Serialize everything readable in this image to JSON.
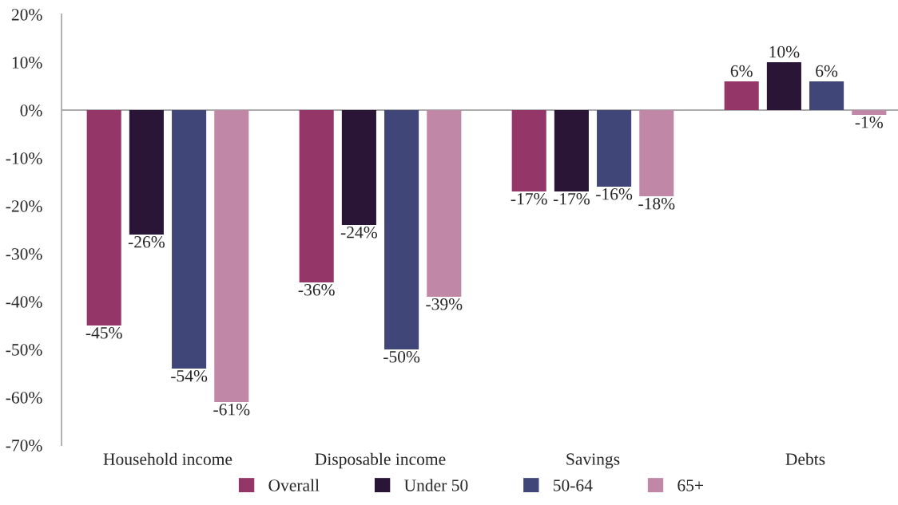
{
  "chart_data": {
    "type": "bar",
    "categories": [
      "Household income",
      "Disposable income",
      "Savings",
      "Debts"
    ],
    "ylim": [
      -70,
      20
    ],
    "yticks": [
      {
        "value": -70,
        "label": "-70%"
      },
      {
        "value": -60,
        "label": "-60%"
      },
      {
        "value": -50,
        "label": "-50%"
      },
      {
        "value": -40,
        "label": "-40%"
      },
      {
        "value": -30,
        "label": "-30%"
      },
      {
        "value": -20,
        "label": "-20%"
      },
      {
        "value": -10,
        "label": "-10%"
      },
      {
        "value": 0,
        "label": "0%"
      },
      {
        "value": 10,
        "label": "10%"
      },
      {
        "value": 20,
        "label": "20%"
      }
    ],
    "legend": "bottom",
    "series": [
      {
        "name": "Overall",
        "color": "#943768",
        "values": [
          -45,
          -36,
          -17,
          6
        ],
        "value_labels": [
          "-45%",
          "-36%",
          "-17%",
          "6%"
        ]
      },
      {
        "name": "Under 50",
        "color": "#2a1536",
        "values": [
          -26,
          -24,
          -17,
          10
        ],
        "value_labels": [
          "-26%",
          "-24%",
          "-17%",
          "10%"
        ]
      },
      {
        "name": "50-64",
        "color": "#414679",
        "values": [
          -54,
          -50,
          -16,
          6
        ],
        "value_labels": [
          "-54%",
          "-50%",
          "-16%",
          "6%"
        ]
      },
      {
        "name": "65+",
        "color": "#c088a6",
        "values": [
          -61,
          -39,
          -18,
          -1
        ],
        "value_labels": [
          "-61%",
          "-39%",
          "-18%",
          "-1%"
        ]
      }
    ]
  }
}
